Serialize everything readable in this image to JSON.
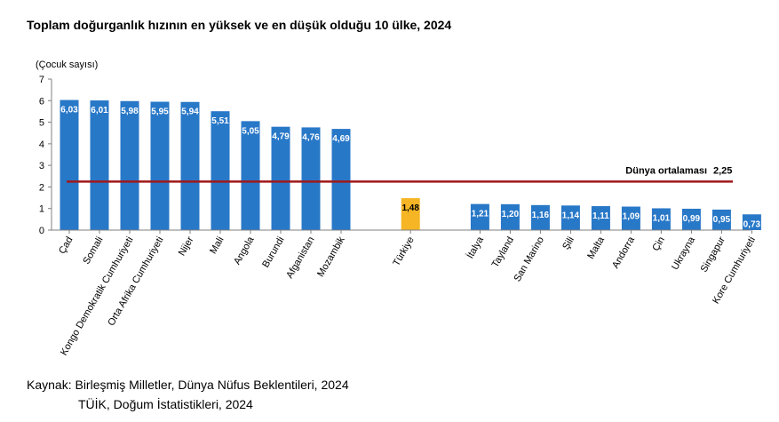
{
  "chart_data": {
    "type": "bar",
    "title": "Toplam doğurganlık hızının en yüksek ve en düşük olduğu 10 ülke, 2024",
    "ylabel": "(Çocuk sayısı)",
    "ylim": [
      0,
      7
    ],
    "yticks": [
      "0",
      "1",
      "2",
      "3",
      "4",
      "5",
      "6",
      "7"
    ],
    "categories": [
      "Çad",
      "Somali",
      "Kongo Demokratik Cumhuriyeti",
      "Orta Afrika Cumhuriyeti",
      "Nijer",
      "Mali",
      "Angola",
      "Burundi",
      "Afganistan",
      "Mozambik",
      "Türkiye",
      "İtalya",
      "Tayland",
      "San Marino",
      "Şili",
      "Malta",
      "Andorra",
      "Çin",
      "Ukrayna",
      "Singapur",
      "Kore Cumhuriyeti"
    ],
    "values": [
      6.03,
      6.01,
      5.98,
      5.95,
      5.94,
      5.51,
      5.05,
      4.79,
      4.76,
      4.69,
      1.48,
      1.21,
      1.2,
      1.16,
      1.14,
      1.11,
      1.09,
      1.01,
      0.99,
      0.95,
      0.73
    ],
    "value_labels": [
      "6,03",
      "6,01",
      "5,98",
      "5,95",
      "5,94",
      "5,51",
      "5,05",
      "4,79",
      "4,76",
      "4,69",
      "1,48",
      "1,21",
      "1,20",
      "1,16",
      "1,14",
      "1,11",
      "1,09",
      "1,01",
      "0,99",
      "0,95",
      "0,73"
    ],
    "groups": [
      10,
      1,
      10
    ],
    "reference_line": {
      "label": "Dünya ortalaması",
      "value": 2.25,
      "value_label": "2,25"
    },
    "grid": false,
    "legend": "none",
    "colors": {
      "bar": "#2878c8",
      "highlight": "#f5b524",
      "reference": "#a01818",
      "axis": "#808080"
    },
    "highlight_index": 10
  },
  "source": {
    "line1": "Kaynak: Birleşmiş Milletler, Dünya Nüfus Beklentileri, 2024",
    "line2": "TÜİK, Doğum İstatistikleri, 2024"
  }
}
